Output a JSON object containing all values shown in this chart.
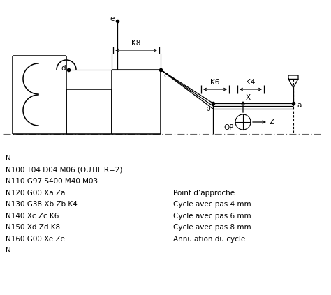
{
  "bg_color": "#ffffff",
  "text_color": "#000000",
  "line_color": "#000000",
  "code_lines": [
    "N.. ...",
    "N100 T04 D04 M06 (OUTIL R=2)",
    "N110 G97 S400 M40 M03",
    "N120 G00 Xa Za",
    "N130 G38 Xb Zb K4",
    "N140 Xc Zc K6",
    "N150 Xd Zd K8",
    "N160 G00 Xe Ze",
    "N.."
  ],
  "comment_lines": [
    "",
    "",
    "",
    "Point d’approche",
    "Cycle avec pas 4 mm",
    "Cycle avec pas 6 mm",
    "Cycle avec pas 8 mm",
    "Annulation du cycle",
    ""
  ],
  "figsize": [
    4.74,
    4.23
  ],
  "dpi": 100
}
